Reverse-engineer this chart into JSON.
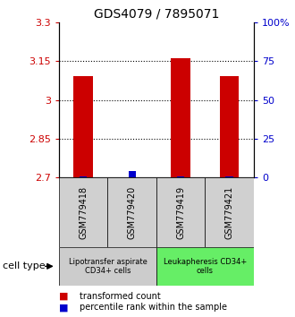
{
  "title": "GDS4079 / 7895071",
  "samples": [
    "GSM779418",
    "GSM779420",
    "GSM779419",
    "GSM779421"
  ],
  "transformed_count": [
    3.09,
    2.7,
    3.16,
    3.09
  ],
  "percentile_rank": [
    1.0,
    4.0,
    1.0,
    1.0
  ],
  "ylim": [
    2.7,
    3.3
  ],
  "yticks_left": [
    2.7,
    2.85,
    3.0,
    3.15,
    3.3
  ],
  "yticks_right": [
    0,
    25,
    50,
    75,
    100
  ],
  "ytick_labels_left": [
    "2.7",
    "2.85",
    "3",
    "3.15",
    "3.3"
  ],
  "ytick_labels_right": [
    "0",
    "25",
    "50",
    "75",
    "100%"
  ],
  "bar_color_red": "#cc0000",
  "bar_color_blue": "#0000cc",
  "bar_width": 0.4,
  "blue_bar_width": 0.15,
  "group_labels": [
    "Lipotransfer aspirate\nCD34+ cells",
    "Leukapheresis CD34+\ncells"
  ],
  "group_colors": [
    "#cccccc",
    "#66ee66"
  ],
  "cell_type_label": "cell type",
  "legend_red": "transformed count",
  "legend_blue": "percentile rank within the sample",
  "dotted_yticks": [
    2.85,
    3.0,
    3.15
  ],
  "background_color": "#ffffff",
  "left_tick_color": "#cc0000",
  "right_tick_color": "#0000cc",
  "sample_box_color": "#d0d0d0",
  "figsize": [
    3.3,
    3.54
  ],
  "dpi": 100
}
